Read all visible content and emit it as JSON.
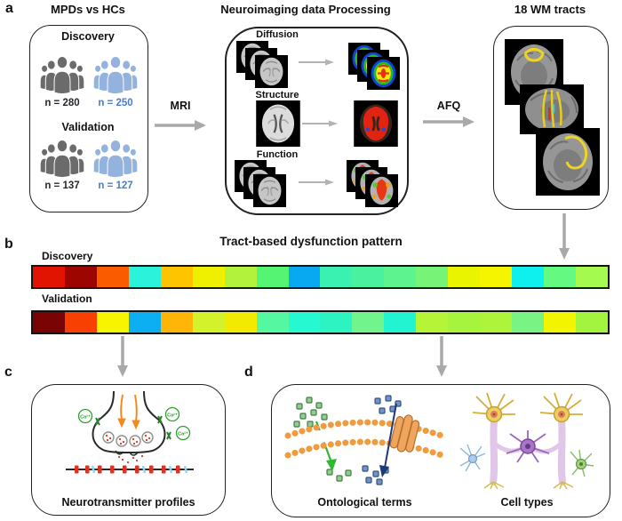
{
  "figure": {
    "panel_a": {
      "label": "a",
      "cohort": {
        "title": "MPDs vs HCs",
        "groups": [
          {
            "name": "Discovery",
            "mpd": "n = 280",
            "hc": "n = 250"
          },
          {
            "name": "Validation",
            "mpd": "n = 137",
            "hc": "n = 127"
          }
        ]
      },
      "mri": "MRI",
      "processing": {
        "title": "Neuroimaging data Processing",
        "modalities": [
          "Diffusion",
          "Structure",
          "Function"
        ]
      },
      "afq": "AFQ",
      "tracts_title": "18 WM tracts"
    },
    "panel_b": {
      "label": "b",
      "title": "Tract-based dysfunction pattern",
      "strips": [
        {
          "name": "Discovery",
          "colors": [
            "#e01400",
            "#9c0500",
            "#fa5a00",
            "#2bf2da",
            "#ffc400",
            "#eef000",
            "#b2f23c",
            "#55f573",
            "#09a9f2",
            "#3af1b2",
            "#4af2a0",
            "#5df38f",
            "#77f478",
            "#e9f500",
            "#f5f500",
            "#0ef0ee",
            "#64fa82",
            "#a5fa50"
          ]
        },
        {
          "name": "Validation",
          "colors": [
            "#7a0403",
            "#f84002",
            "#f8f400",
            "#0cb0f2",
            "#ffb508",
            "#d4f22c",
            "#f2ea00",
            "#55f8a0",
            "#26f8d2",
            "#2df3c3",
            "#71f48c",
            "#22f3d0",
            "#b6f437",
            "#a6f43e",
            "#aef43a",
            "#79f484",
            "#f2f400",
            "#a2f43e"
          ]
        }
      ]
    },
    "panel_c": {
      "label": "c",
      "caption": "Neurotransmitter profiles",
      "ca_label": "Ca²⁺"
    },
    "panel_d": {
      "label": "d",
      "left_caption": "Ontological terms",
      "right_caption": "Cell types"
    }
  },
  "theme": {
    "mpd_gray": "#6b6b6b",
    "hc_blue": "#93b2de",
    "mpd_count_color": "#26262e",
    "hc_count_color": "#4a7cc8",
    "arrow_gray": "#a9a9a9",
    "inner_arrow_gray": "#b3b3b3"
  }
}
